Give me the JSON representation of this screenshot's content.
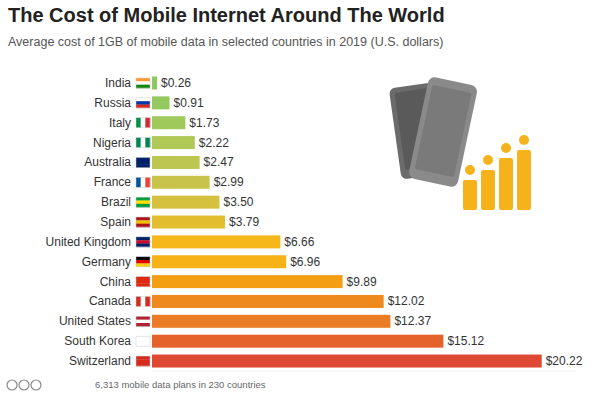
{
  "chart_data": {
    "type": "bar",
    "orientation": "horizontal",
    "title": "The Cost of Mobile Internet Around The World",
    "subtitle": "Average cost of 1GB of mobile data in selected countries in 2019 (U.S. dollars)",
    "note": "6,313 mobile data plans in 230 countries",
    "categories": [
      "India",
      "Russia",
      "Italy",
      "Nigeria",
      "Australia",
      "France",
      "Brazil",
      "Spain",
      "United Kingdom",
      "Germany",
      "China",
      "Canada",
      "United States",
      "South Korea",
      "Switzerland"
    ],
    "values": [
      0.26,
      0.91,
      1.73,
      2.22,
      2.47,
      2.99,
      3.5,
      3.79,
      6.66,
      6.96,
      9.89,
      12.02,
      12.37,
      15.12,
      20.22
    ],
    "value_labels": [
      "$0.26",
      "$0.91",
      "$1.73",
      "$2.22",
      "$2.47",
      "$2.99",
      "$3.50",
      "$3.79",
      "$6.66",
      "$6.96",
      "$9.89",
      "$12.02",
      "$12.37",
      "$15.12",
      "$20.22"
    ],
    "colors": [
      "#8dc863",
      "#94c961",
      "#a0c95c",
      "#b0c856",
      "#bcc651",
      "#c8c44b",
      "#d6c13f",
      "#e2be2e",
      "#f5b719",
      "#f6b216",
      "#f39e13",
      "#ee8a1d",
      "#ea7c25",
      "#e5622c",
      "#df4934"
    ],
    "xlim": [
      0,
      22
    ],
    "data_labels": true,
    "tick_labels": false,
    "grid": false
  }
}
